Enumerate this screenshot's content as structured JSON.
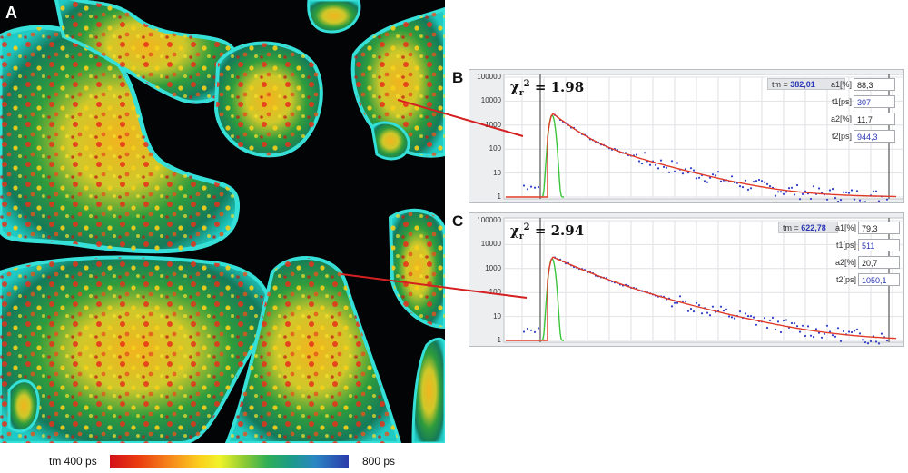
{
  "figure": {
    "panel_a_label": "A",
    "panel_b_label": "B",
    "panel_c_label": "C"
  },
  "colorbar": {
    "left_label": "tm 400 ps",
    "right_label": "800 ps"
  },
  "decay_b": {
    "chi_symbol": "χ",
    "chi_sup": "2",
    "chi_sub": "r",
    "chi_value": "= 1.98",
    "tm_label": "tm =",
    "tm_value": "382,01",
    "yticks": [
      "100000",
      "10000",
      "1000",
      "100",
      "10",
      "1"
    ],
    "params": [
      {
        "label": "a1[%]",
        "value": "88,3",
        "color": "#222222"
      },
      {
        "label": "t1[ps]",
        "value": "307",
        "color": "#2a36b5"
      },
      {
        "label": "a2[%]",
        "value": "11,7",
        "color": "#222222"
      },
      {
        "label": "t2[ps]",
        "value": "944,3",
        "color": "#2a36b5"
      }
    ]
  },
  "decay_c": {
    "chi_symbol": "χ",
    "chi_sup": "2",
    "chi_sub": "r",
    "chi_value": "= 2.94",
    "tm_label": "tm =",
    "tm_value": "622,78",
    "yticks": [
      "100000",
      "10000",
      "1000",
      "100",
      "10",
      "1"
    ],
    "params": [
      {
        "label": "a1[%]",
        "value": "79,3",
        "color": "#222222"
      },
      {
        "label": "t1[ps]",
        "value": "511",
        "color": "#2a36b5"
      },
      {
        "label": "a2[%]",
        "value": "20,7",
        "color": "#222222"
      },
      {
        "label": "t2[ps]",
        "value": "1050,1",
        "color": "#2a36b5"
      }
    ]
  },
  "colors": {
    "fit_curve": "#e03a28",
    "data_points": "#3340c8",
    "irf_curve": "#3cc43c",
    "annotation_line": "#d42020"
  }
}
